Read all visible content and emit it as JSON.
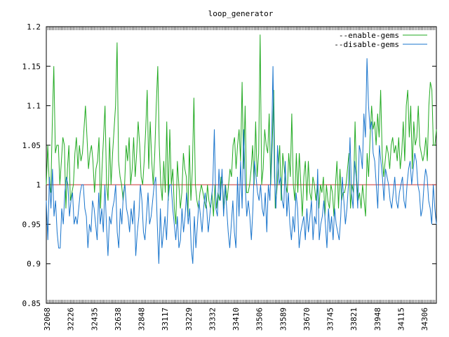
{
  "chart_data": {
    "type": "line",
    "title": "loop_generator",
    "xlabel": "",
    "ylabel": "",
    "ylim": [
      0.85,
      1.2
    ],
    "y_ticks": [
      "0.85",
      "0.9",
      "0.95",
      "1",
      "1.05",
      "1.1",
      "1.15",
      "1.2"
    ],
    "x_tick_labels": [
      "32068",
      "32226",
      "32435",
      "32638",
      "32848",
      "33117",
      "33229",
      "33332",
      "33410",
      "33506",
      "33589",
      "33670",
      "33745",
      "33821",
      "33948",
      "34115",
      "34306"
    ],
    "reference_line": {
      "value": 1.0,
      "color": "#cc3333"
    },
    "legend_position": "top-right",
    "series": [
      {
        "name": "--enable-gems",
        "color": "#22aa22",
        "values": [
          1.0,
          1.05,
          1.0,
          0.99,
          1.08,
          1.15,
          1.04,
          1.05,
          1.05,
          1.0,
          1.03,
          1.06,
          1.05,
          0.97,
          1.02,
          1.05,
          0.98,
          0.99,
          1.0,
          1.04,
          1.06,
          1.02,
          1.05,
          1.03,
          1.04,
          1.07,
          1.1,
          1.06,
          1.02,
          1.04,
          1.05,
          1.03,
          0.99,
          1.02,
          1.03,
          1.06,
          0.97,
          1.02,
          1.06,
          1.1,
          1.0,
          0.98,
          1.06,
          1.0,
          1.04,
          1.07,
          1.1,
          1.18,
          1.03,
          1.01,
          1.0,
          0.98,
          1.0,
          1.05,
          1.03,
          1.06,
          1.0,
          1.02,
          1.06,
          1.01,
          1.04,
          1.08,
          1.05,
          1.01,
          1.0,
          1.03,
          1.07,
          1.12,
          1.02,
          1.08,
          1.03,
          1.0,
          1.04,
          1.1,
          1.15,
          1.05,
          1.0,
          0.98,
          1.03,
          0.99,
          1.08,
          0.98,
          1.07,
          1.0,
          1.02,
          0.97,
          0.95,
          1.03,
          1.0,
          0.97,
          0.99,
          1.04,
          1.02,
          1.01,
          0.96,
          1.05,
          0.98,
          1.02,
          1.11,
          1.0,
          0.98,
          0.97,
          0.99,
          1.0,
          0.99,
          0.98,
          0.97,
          1.0,
          0.98,
          0.97,
          0.99,
          0.96,
          1.0,
          0.97,
          0.99,
          0.98,
          1.01,
          1.0,
          0.97,
          1.0,
          0.98,
          1.0,
          1.02,
          1.01,
          1.05,
          1.06,
          1.02,
          1.05,
          1.07,
          1.03,
          1.13,
          1.02,
          1.1,
          0.99,
          0.99,
          1.0,
          1.02,
          1.05,
          1.0,
          1.08,
          1.01,
          1.04,
          1.19,
          1.0,
          1.02,
          1.07,
          1.05,
          1.04,
          1.09,
          1.0,
          1.05,
          1.12,
          0.97,
          0.99,
          1.02,
          1.05,
          0.98,
          1.04,
          1.02,
          1.0,
          0.99,
          1.04,
          1.01,
          1.09,
          1.0,
          0.98,
          1.04,
          0.99,
          1.04,
          1.0,
          0.96,
          1.01,
          1.03,
          0.98,
          1.03,
          0.99,
          0.98,
          1.01,
          1.0,
          0.98,
          1.0,
          0.97,
          1.0,
          0.99,
          1.01,
          0.96,
          1.0,
          0.98,
          0.97,
          1.0,
          0.99,
          0.96,
          1.0,
          1.03,
          0.97,
          1.02,
          0.98,
          0.99,
          0.99,
          1.0,
          1.02,
          1.04,
          0.97,
          1.0,
          0.99,
          1.08,
          1.01,
          0.98,
          0.99,
          0.97,
          1.0,
          0.98,
          0.96,
          1.04,
          1.01,
          1.06,
          1.1,
          1.07,
          1.08,
          1.05,
          1.09,
          1.06,
          1.12,
          1.04,
          1.01,
          1.03,
          1.05,
          1.04,
          1.02,
          1.05,
          1.06,
          1.04,
          1.05,
          1.03,
          1.06,
          1.02,
          1.04,
          1.08,
          1.03,
          1.1,
          1.12,
          1.06,
          1.1,
          1.02,
          1.08,
          1.05,
          1.06,
          1.1,
          1.05,
          1.04,
          1.03,
          1.04,
          1.06,
          1.03,
          1.1,
          1.13,
          1.12,
          1.05,
          1.05,
          1.07
        ]
      },
      {
        "name": "--disable-gems",
        "color": "#1a75cc",
        "values": [
          0.98,
          0.93,
          1.01,
          0.97,
          1.02,
          0.96,
          0.98,
          0.94,
          0.92,
          0.92,
          0.97,
          0.95,
          0.99,
          1.01,
          1.0,
          0.96,
          0.98,
          0.99,
          0.95,
          0.96,
          0.95,
          0.97,
          0.99,
          1.0,
          1.0,
          0.97,
          0.96,
          0.92,
          0.95,
          0.94,
          0.98,
          0.97,
          0.95,
          0.93,
          0.99,
          0.95,
          0.97,
          0.94,
          1.0,
          0.95,
          0.91,
          0.96,
          0.95,
          0.97,
          0.98,
          1.0,
          0.94,
          0.92,
          0.97,
          0.95,
          0.99,
          1.0,
          0.97,
          0.96,
          0.94,
          0.97,
          0.95,
          0.98,
          0.91,
          0.94,
          0.96,
          1.0,
          0.98,
          0.94,
          0.93,
          0.96,
          0.99,
          0.95,
          0.96,
          0.98,
          1.0,
          1.01,
          0.95,
          0.9,
          0.97,
          0.92,
          0.94,
          0.96,
          0.93,
          0.98,
          1.0,
          1.0,
          0.97,
          0.95,
          0.93,
          0.96,
          0.92,
          0.93,
          0.97,
          0.94,
          0.96,
          0.99,
          0.95,
          0.97,
          0.92,
          0.9,
          0.96,
          0.92,
          0.95,
          0.98,
          0.96,
          0.94,
          0.97,
          0.99,
          0.97,
          0.94,
          0.96,
          0.98,
          1.0,
          1.07,
          0.97,
          0.96,
          1.02,
          0.98,
          1.02,
          0.96,
          1.0,
          0.97,
          0.94,
          0.92,
          0.95,
          0.98,
          0.94,
          0.92,
          1.01,
          0.96,
          1.03,
          0.97,
          1.07,
          1.0,
          0.96,
          0.98,
          0.96,
          0.93,
          0.97,
          1.03,
          1.01,
          0.99,
          0.98,
          1.0,
          0.97,
          0.96,
          0.99,
          0.94,
          1.0,
          0.98,
          1.04,
          1.15,
          1.01,
          0.97,
          1.05,
          1.0,
          1.01,
          0.98,
          0.97,
          1.03,
          0.96,
          0.99,
          0.95,
          0.93,
          0.96,
          0.94,
          0.99,
          0.97,
          0.92,
          0.94,
          0.95,
          0.96,
          0.93,
          0.97,
          0.94,
          0.96,
          0.98,
          0.93,
          0.96,
          0.95,
          1.02,
          0.93,
          0.95,
          0.96,
          0.98,
          0.95,
          0.92,
          0.97,
          0.94,
          0.96,
          0.93,
          0.97,
          0.95,
          0.94,
          0.93,
          0.96,
          1.01,
          0.98,
          0.95,
          0.97,
          1.0,
          1.06,
          0.99,
          0.97,
          1.03,
          1.01,
          0.97,
          1.05,
          1.04,
          1.02,
          1.09,
          1.06,
          1.16,
          1.1,
          1.07,
          1.08,
          1.04,
          1.03,
          1.0,
          0.97,
          1.05,
          1.03,
          1.01,
          0.98,
          1.02,
          1.01,
          1.0,
          0.98,
          0.97,
          0.99,
          1.01,
          0.98,
          0.97,
          0.99,
          1.0,
          1.01,
          0.98,
          0.97,
          1.0,
          1.02,
          1.03,
          1.0,
          1.02,
          1.04,
          1.03,
          1.0,
          0.99,
          0.96,
          0.97,
          1.0,
          1.02,
          1.01,
          0.98,
          0.97,
          0.95,
          1.0,
          0.97,
          0.95
        ]
      }
    ]
  }
}
